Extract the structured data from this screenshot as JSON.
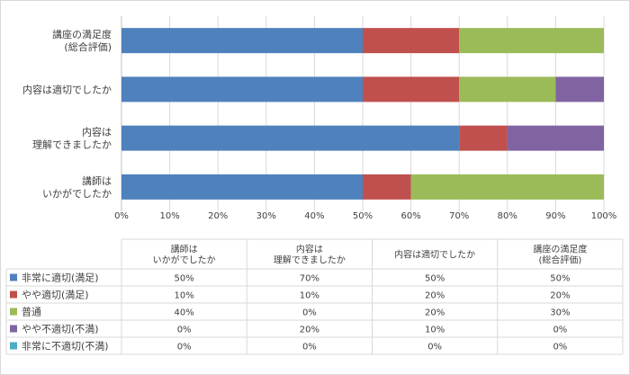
{
  "chart_data": {
    "type": "bar",
    "orientation": "horizontal",
    "stacked": true,
    "categories": [
      [
        "講座の満足度",
        "(総合評価)"
      ],
      [
        "内容は適切でしたか"
      ],
      [
        "内容は",
        "理解できましたか"
      ],
      [
        "講師は",
        "いかがでしたか"
      ]
    ],
    "xlim": [
      0,
      100
    ],
    "xticks": [
      "0%",
      "10%",
      "20%",
      "30%",
      "40%",
      "50%",
      "60%",
      "70%",
      "80%",
      "90%",
      "100%"
    ],
    "grid": true,
    "series": [
      {
        "name": "非常に適切(満足)",
        "color": "#4f81bd",
        "values": [
          50,
          50,
          70,
          50
        ]
      },
      {
        "name": "やや適切(満足)",
        "color": "#c0504d",
        "values": [
          20,
          20,
          10,
          10
        ]
      },
      {
        "name": "普通",
        "color": "#9bbb59",
        "values": [
          30,
          20,
          0,
          40
        ]
      },
      {
        "name": "やや不適切(不満)",
        "color": "#8064a2",
        "values": [
          0,
          10,
          20,
          0
        ]
      },
      {
        "name": "非常に不適切(不満)",
        "color": "#4bacc6",
        "values": [
          0,
          0,
          0,
          0
        ]
      }
    ],
    "table": {
      "columns": [
        [
          "講師は",
          "いかがでしたか"
        ],
        [
          "内容は",
          "理解できましたか"
        ],
        [
          "内容は適切でしたか"
        ],
        [
          "講座の満足度",
          "(総合評価)"
        ]
      ],
      "rows": [
        [
          "50%",
          "70%",
          "50%",
          "50%"
        ],
        [
          "10%",
          "10%",
          "20%",
          "20%"
        ],
        [
          "40%",
          "0%",
          "20%",
          "30%"
        ],
        [
          "0%",
          "20%",
          "10%",
          "0%"
        ],
        [
          "0%",
          "0%",
          "0%",
          "0%"
        ]
      ]
    }
  }
}
